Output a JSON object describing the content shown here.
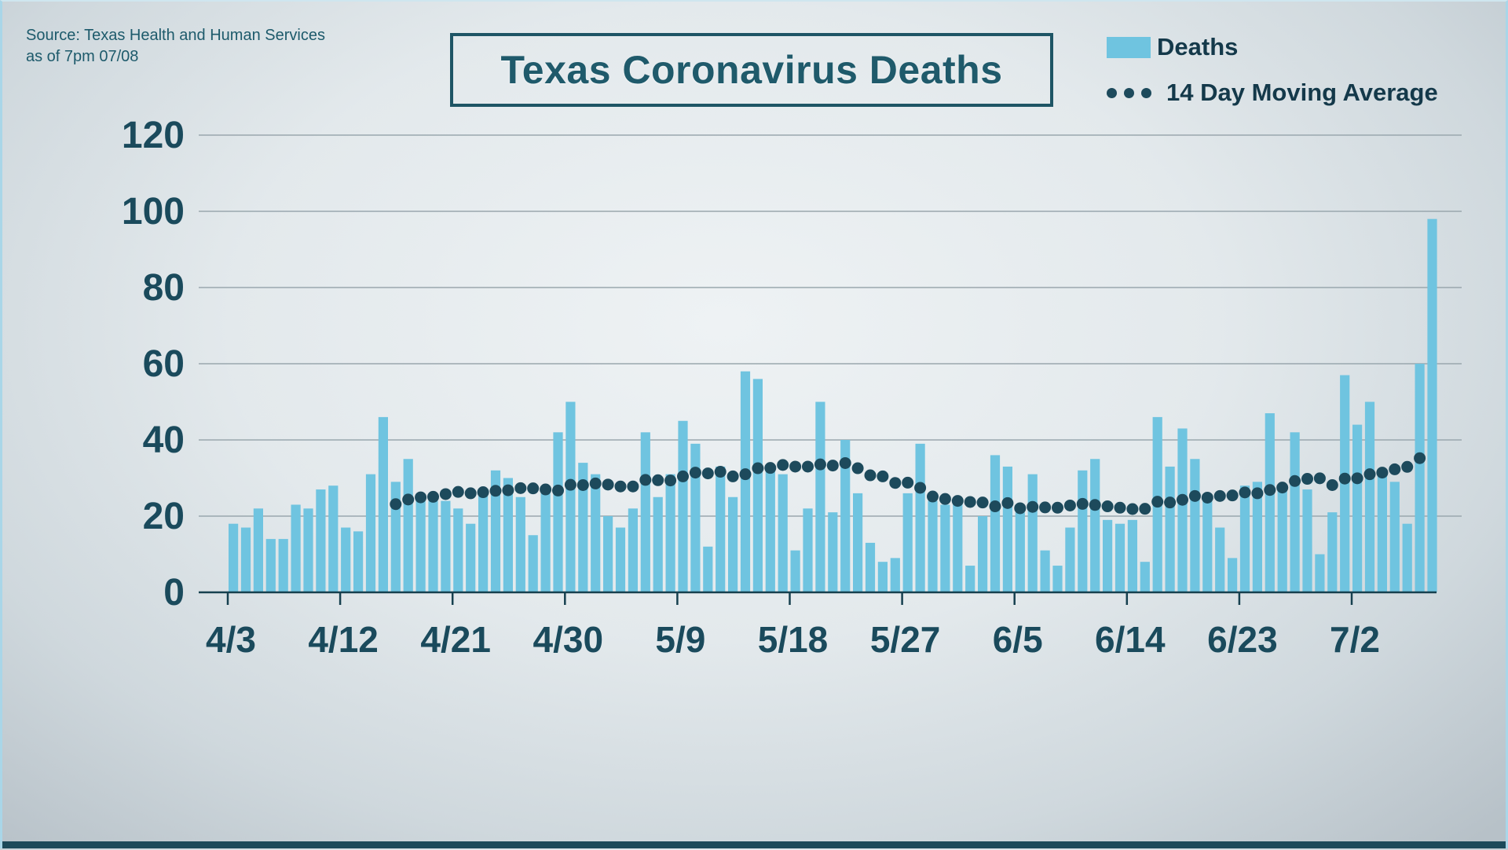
{
  "source": {
    "line1": "Source: Texas Health and Human Services",
    "line2": "as of 7pm 07/08"
  },
  "title": "Texas Coronavirus Deaths",
  "legend": {
    "bars_label": "Deaths",
    "line_label": "14 Day Moving Average"
  },
  "colors": {
    "bar": "#6fc4e0",
    "dot": "#1d4a5c",
    "axis_text": "#1a4a5c",
    "title_text": "#1f5a6b",
    "gridline": "#9aa7ae",
    "axis_line": "#16404f",
    "bottom_strip": "#1d4a5a"
  },
  "chart_data": {
    "type": "bar",
    "title": "Texas Coronavirus Deaths",
    "xlabel": "",
    "ylabel": "",
    "ylim": [
      0,
      120
    ],
    "ytick_step": 20,
    "ytick_labels": [
      "0",
      "20",
      "40",
      "60",
      "80",
      "100",
      "120"
    ],
    "grid": true,
    "legend_position": "top-right",
    "xtick_labels": [
      "4/3",
      "4/12",
      "4/21",
      "4/30",
      "5/9",
      "5/18",
      "5/27",
      "6/5",
      "6/14",
      "6/23",
      "7/2"
    ],
    "xtick_every_days": 9,
    "categories": [
      "4/3",
      "4/4",
      "4/5",
      "4/6",
      "4/7",
      "4/8",
      "4/9",
      "4/10",
      "4/11",
      "4/12",
      "4/13",
      "4/14",
      "4/15",
      "4/16",
      "4/17",
      "4/18",
      "4/19",
      "4/20",
      "4/21",
      "4/22",
      "4/23",
      "4/24",
      "4/25",
      "4/26",
      "4/27",
      "4/28",
      "4/29",
      "4/30",
      "5/1",
      "5/2",
      "5/3",
      "5/4",
      "5/5",
      "5/6",
      "5/7",
      "5/8",
      "5/9",
      "5/10",
      "5/11",
      "5/12",
      "5/13",
      "5/14",
      "5/15",
      "5/16",
      "5/17",
      "5/18",
      "5/19",
      "5/20",
      "5/21",
      "5/22",
      "5/23",
      "5/24",
      "5/25",
      "5/26",
      "5/27",
      "5/28",
      "5/29",
      "5/30",
      "5/31",
      "6/1",
      "6/2",
      "6/3",
      "6/4",
      "6/5",
      "6/6",
      "6/7",
      "6/8",
      "6/9",
      "6/10",
      "6/11",
      "6/12",
      "6/13",
      "6/14",
      "6/15",
      "6/16",
      "6/17",
      "6/18",
      "6/19",
      "6/20",
      "6/21",
      "6/22",
      "6/23",
      "6/24",
      "6/25",
      "6/26",
      "6/27",
      "6/28",
      "6/29",
      "6/30",
      "7/1",
      "7/2",
      "7/3",
      "7/4",
      "7/5",
      "7/6",
      "7/7",
      "7/8"
    ],
    "series": [
      {
        "name": "Deaths",
        "values": [
          18,
          17,
          22,
          14,
          14,
          23,
          22,
          27,
          28,
          17,
          16,
          31,
          46,
          29,
          35,
          25,
          24,
          24,
          22,
          18,
          26,
          32,
          30,
          25,
          15,
          27,
          42,
          50,
          34,
          31,
          20,
          17,
          22,
          42,
          25,
          31,
          45,
          39,
          12,
          33,
          25,
          58,
          56,
          32,
          31,
          11,
          22,
          50,
          21,
          40,
          26,
          13,
          8,
          9,
          26,
          39,
          24,
          23,
          24,
          7,
          20,
          36,
          33,
          21,
          31,
          11,
          7,
          17,
          32,
          35,
          19,
          18,
          19,
          8,
          46,
          33,
          43,
          35,
          25,
          17,
          9,
          28,
          29,
          47,
          28,
          42,
          27,
          10,
          21,
          57,
          44,
          50,
          31,
          29,
          18,
          60,
          98
        ]
      },
      {
        "name": "14 Day Moving Average",
        "derived": "mean of trailing 14 daily values, plotted 4/16 through 7/7"
      }
    ],
    "ma_window": 14,
    "ma_last_index": 95
  }
}
